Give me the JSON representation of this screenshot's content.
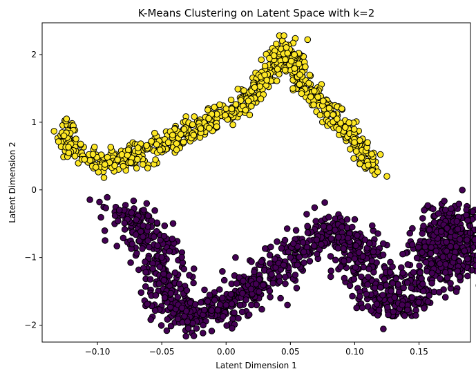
{
  "chart_data": {
    "type": "scatter",
    "title": "K-Means Clustering on Latent Space with k=2",
    "xlabel": "Latent Dimension 1",
    "ylabel": "Latent Dimension 2",
    "xlim": [
      -0.143,
      0.19
    ],
    "ylim": [
      -2.25,
      2.47
    ],
    "x_ticks": [
      -0.1,
      -0.05,
      0.0,
      0.05,
      0.1,
      0.15
    ],
    "x_tick_labels": [
      "−0.10",
      "−0.05",
      "0.00",
      "0.05",
      "0.10",
      "0.15"
    ],
    "y_ticks": [
      -2,
      -1,
      0,
      1,
      2
    ],
    "y_tick_labels": [
      "−2",
      "−1",
      "0",
      "1",
      "2"
    ],
    "grid": false,
    "legend": "none",
    "clusters": [
      {
        "cluster": 0,
        "color": "#440154",
        "path": [
          [
            -0.083,
            -0.3
          ],
          [
            -0.075,
            -0.4
          ],
          [
            -0.065,
            -0.55
          ],
          [
            -0.055,
            -0.85
          ],
          [
            -0.048,
            -1.3
          ],
          [
            -0.04,
            -1.7
          ],
          [
            -0.03,
            -1.95
          ],
          [
            -0.02,
            -1.92
          ],
          [
            -0.005,
            -1.75
          ],
          [
            0.01,
            -1.58
          ],
          [
            0.025,
            -1.4
          ],
          [
            0.04,
            -1.12
          ],
          [
            0.055,
            -0.95
          ],
          [
            0.068,
            -0.75
          ],
          [
            0.08,
            -0.62
          ],
          [
            0.092,
            -0.58
          ],
          [
            0.103,
            -0.8
          ],
          [
            0.11,
            -1.2
          ],
          [
            0.117,
            -1.55
          ],
          [
            0.128,
            -1.75
          ],
          [
            0.14,
            -1.7
          ],
          [
            0.152,
            -1.4
          ],
          [
            0.16,
            -1.0
          ],
          [
            0.167,
            -0.55
          ],
          [
            0.172,
            -0.36
          ],
          [
            0.178,
            -0.5
          ],
          [
            0.181,
            -0.9
          ],
          [
            0.18,
            -1.3
          ]
        ],
        "spread": [
          0.01,
          0.12
        ],
        "sample_points": [
          [
            -0.083,
            -0.3
          ],
          [
            -0.05,
            -1.0
          ],
          [
            -0.03,
            -1.95
          ],
          [
            0.0,
            -1.7
          ],
          [
            0.05,
            -1.0
          ],
          [
            0.09,
            -0.55
          ],
          [
            0.11,
            -1.4
          ],
          [
            0.13,
            -1.8
          ],
          [
            0.165,
            -0.35
          ],
          [
            0.18,
            -1.2
          ]
        ]
      },
      {
        "cluster": 1,
        "color": "#fde725",
        "path": [
          [
            -0.12,
            0.9
          ],
          [
            -0.125,
            0.75
          ],
          [
            -0.124,
            0.7
          ],
          [
            -0.12,
            0.6
          ],
          [
            -0.11,
            0.48
          ],
          [
            -0.095,
            0.42
          ],
          [
            -0.08,
            0.42
          ],
          [
            -0.065,
            0.55
          ],
          [
            -0.05,
            0.65
          ],
          [
            -0.035,
            0.8
          ],
          [
            -0.02,
            0.95
          ],
          [
            -0.005,
            1.1
          ],
          [
            0.01,
            1.25
          ],
          [
            0.02,
            1.4
          ],
          [
            0.03,
            1.65
          ],
          [
            0.038,
            1.85
          ],
          [
            0.043,
            2.0
          ],
          [
            0.047,
            2.15
          ],
          [
            0.05,
            2.05
          ],
          [
            0.055,
            1.75
          ],
          [
            0.063,
            1.5
          ],
          [
            0.075,
            1.25
          ],
          [
            0.085,
            1.05
          ],
          [
            0.092,
            0.9
          ],
          [
            0.1,
            0.75
          ],
          [
            0.106,
            0.6
          ],
          [
            0.11,
            0.45
          ],
          [
            0.113,
            0.35
          ]
        ],
        "spread": [
          0.004,
          0.09
        ],
        "sample_points": [
          [
            -0.124,
            1.05
          ],
          [
            -0.126,
            0.8
          ],
          [
            -0.11,
            0.45
          ],
          [
            -0.08,
            0.35
          ],
          [
            -0.045,
            0.7
          ],
          [
            0.0,
            1.2
          ],
          [
            0.03,
            1.7
          ],
          [
            0.045,
            2.28
          ],
          [
            0.065,
            1.7
          ],
          [
            0.09,
            1.2
          ],
          [
            0.11,
            0.7
          ],
          [
            0.125,
            0.2
          ]
        ]
      }
    ]
  }
}
